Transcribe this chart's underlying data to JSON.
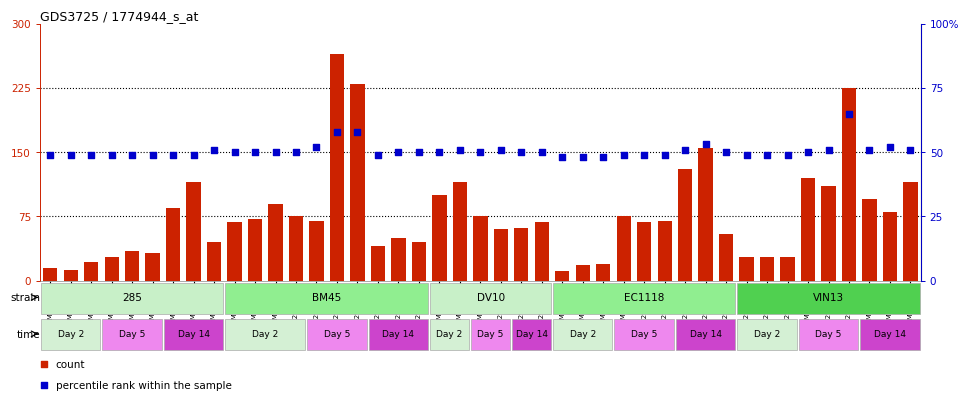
{
  "title": "GDS3725 / 1774944_s_at",
  "samples": [
    "GSM291115",
    "GSM291116",
    "GSM291117",
    "GSM291140",
    "GSM291141",
    "GSM291142",
    "GSM291000",
    "GSM291001",
    "GSM291462",
    "GSM291523",
    "GSM291524",
    "GSM291555",
    "GSM2968856",
    "GSM2968857",
    "GSM2909992",
    "GSM2909993",
    "GSM2909989",
    "GSM2909990",
    "GSM2909991",
    "GSM291538",
    "GSM291539",
    "GSM291540",
    "GSM2909994",
    "GSM2909995",
    "GSM2909996",
    "GSM291435",
    "GSM291439",
    "GSM291445",
    "GSM291554",
    "GSM2968858",
    "GSM2968859",
    "GSM2909997",
    "GSM2909998",
    "GSM2909999",
    "GSM2909901",
    "GSM2909902",
    "GSM2909903",
    "GSM291525",
    "GSM2968860",
    "GSM2968861",
    "GSM291002",
    "GSM291003",
    "GSM292045"
  ],
  "counts": [
    15,
    13,
    22,
    28,
    35,
    32,
    85,
    115,
    45,
    68,
    72,
    90,
    75,
    70,
    265,
    230,
    40,
    50,
    45,
    100,
    115,
    75,
    60,
    62,
    68,
    12,
    18,
    20,
    75,
    68,
    70,
    130,
    155,
    55,
    28,
    28,
    28,
    120,
    110,
    225,
    95,
    80,
    115
  ],
  "percentiles_pct": [
    49,
    49,
    49,
    49,
    49,
    49,
    49,
    49,
    51,
    50,
    50,
    50,
    50,
    52,
    58,
    58,
    49,
    50,
    50,
    50,
    51,
    50,
    51,
    50,
    50,
    48,
    48,
    48,
    49,
    49,
    49,
    51,
    53,
    50,
    49,
    49,
    49,
    50,
    51,
    65,
    51,
    52,
    51
  ],
  "strains": [
    {
      "label": "285",
      "start": 0,
      "end": 9,
      "color": "#c8f0c8"
    },
    {
      "label": "BM45",
      "start": 9,
      "end": 19,
      "color": "#90ee90"
    },
    {
      "label": "DV10",
      "start": 19,
      "end": 25,
      "color": "#c8f0c8"
    },
    {
      "label": "EC1118",
      "start": 25,
      "end": 34,
      "color": "#90ee90"
    },
    {
      "label": "VIN13",
      "start": 34,
      "end": 43,
      "color": "#50d050"
    }
  ],
  "time_groups": [
    {
      "label": "Day 2",
      "start": 0,
      "end": 3,
      "color": "#d4f0d4"
    },
    {
      "label": "Day 5",
      "start": 3,
      "end": 6,
      "color": "#ee88ee"
    },
    {
      "label": "Day 14",
      "start": 6,
      "end": 9,
      "color": "#cc44cc"
    },
    {
      "label": "Day 2",
      "start": 9,
      "end": 13,
      "color": "#d4f0d4"
    },
    {
      "label": "Day 5",
      "start": 13,
      "end": 16,
      "color": "#ee88ee"
    },
    {
      "label": "Day 14",
      "start": 16,
      "end": 19,
      "color": "#cc44cc"
    },
    {
      "label": "Day 2",
      "start": 19,
      "end": 21,
      "color": "#d4f0d4"
    },
    {
      "label": "Day 5",
      "start": 21,
      "end": 23,
      "color": "#ee88ee"
    },
    {
      "label": "Day 14",
      "start": 23,
      "end": 25,
      "color": "#cc44cc"
    },
    {
      "label": "Day 2",
      "start": 25,
      "end": 28,
      "color": "#d4f0d4"
    },
    {
      "label": "Day 5",
      "start": 28,
      "end": 31,
      "color": "#ee88ee"
    },
    {
      "label": "Day 14",
      "start": 31,
      "end": 34,
      "color": "#cc44cc"
    },
    {
      "label": "Day 2",
      "start": 34,
      "end": 37,
      "color": "#d4f0d4"
    },
    {
      "label": "Day 5",
      "start": 37,
      "end": 40,
      "color": "#ee88ee"
    },
    {
      "label": "Day 14",
      "start": 40,
      "end": 43,
      "color": "#cc44cc"
    }
  ],
  "ylim_left": [
    0,
    300
  ],
  "ylim_right": [
    0,
    100
  ],
  "yticks_left": [
    0,
    75,
    150,
    225,
    300
  ],
  "yticks_right": [
    0,
    25,
    50,
    75,
    100
  ],
  "hlines": [
    75,
    150,
    225
  ],
  "bar_color": "#cc2200",
  "dot_color": "#0000cc",
  "bg_color": "#ffffff"
}
